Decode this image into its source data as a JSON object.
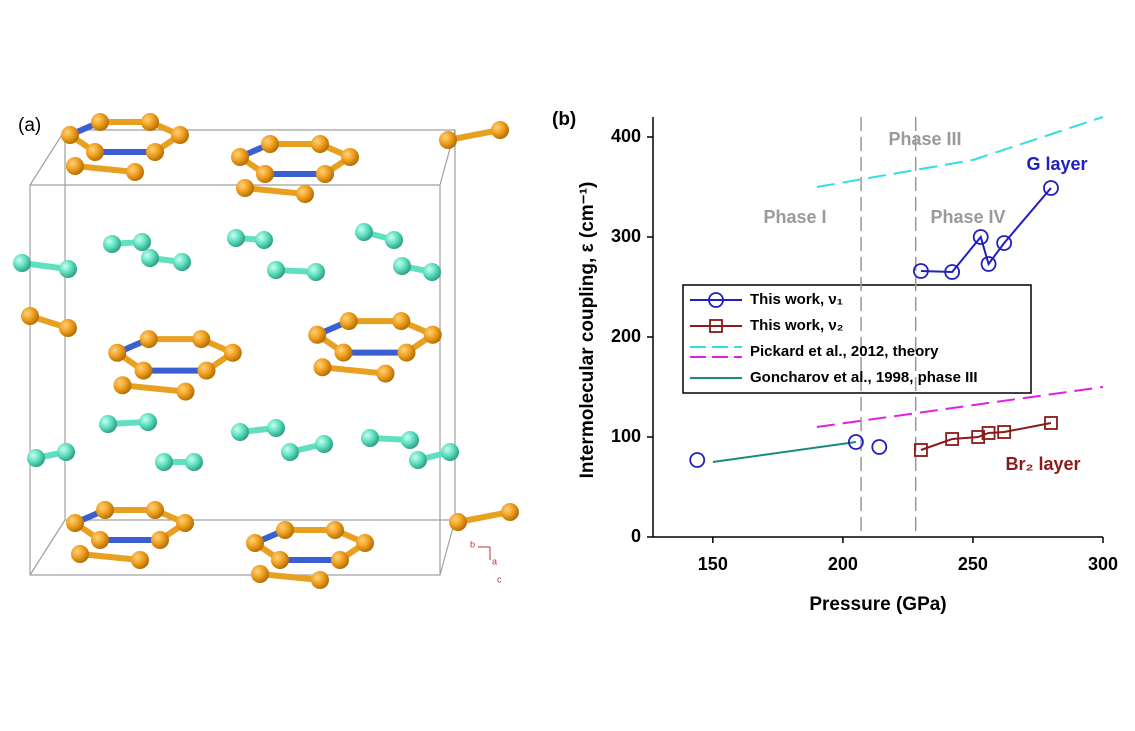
{
  "panel_a": {
    "label": "(a)",
    "axes": [
      "b",
      "a",
      "c"
    ]
  },
  "chart_data": {
    "type": "line",
    "panel_label": "(b)",
    "x_label": "Pressure (GPa)",
    "y_label": "Intermolecular coupling, ε (cm⁻¹)",
    "xlim": [
      127,
      300
    ],
    "ylim": [
      0,
      420
    ],
    "xticks": [
      150,
      200,
      250,
      300
    ],
    "yticks": [
      0,
      100,
      200,
      300,
      400
    ],
    "vlines": [
      207,
      228
    ],
    "annotations": [
      {
        "text": "Phase III",
        "color": "#9a9a9a"
      },
      {
        "text": "Phase I",
        "color": "#9a9a9a"
      },
      {
        "text": "Phase IV",
        "color": "#9a9a9a"
      },
      {
        "text": "G layer",
        "color": "#2020c0"
      },
      {
        "text": "Br₂ layer",
        "color": "#8b1a1a"
      }
    ],
    "series": [
      {
        "name": "This work, ν₁",
        "color": "#2020c0",
        "marker": "circle",
        "dash": false,
        "x": [
          230,
          242,
          253,
          256,
          262,
          280
        ],
        "values": [
          266,
          265,
          300,
          273,
          294,
          349
        ]
      },
      {
        "name": "This work, ν₂",
        "color": "#8b1a1a",
        "marker": "square",
        "dash": false,
        "x": [
          230,
          242,
          252,
          256,
          262,
          280
        ],
        "values": [
          87,
          98,
          100,
          104,
          105,
          114
        ]
      },
      {
        "name": "Pickard et al., 2012, theory",
        "color": "#33dde6",
        "marker": null,
        "dash": true,
        "x": [
          190,
          250,
          300
        ],
        "values": [
          350,
          377,
          420
        ]
      },
      {
        "name": "Pickard et al., 2012, theory",
        "color": "#e020e0",
        "marker": null,
        "dash": true,
        "x": [
          190,
          300
        ],
        "values": [
          110,
          150
        ]
      },
      {
        "name": "Goncharov et al., 1998, phase III",
        "color": "#1a8a7a",
        "marker": null,
        "dash": false,
        "x": [
          150,
          205
        ],
        "values": [
          75,
          95
        ]
      },
      {
        "color": "#2020c0",
        "marker": "circle",
        "line": false,
        "x": [
          144,
          205,
          214
        ],
        "values": [
          77,
          95,
          90
        ]
      }
    ]
  }
}
